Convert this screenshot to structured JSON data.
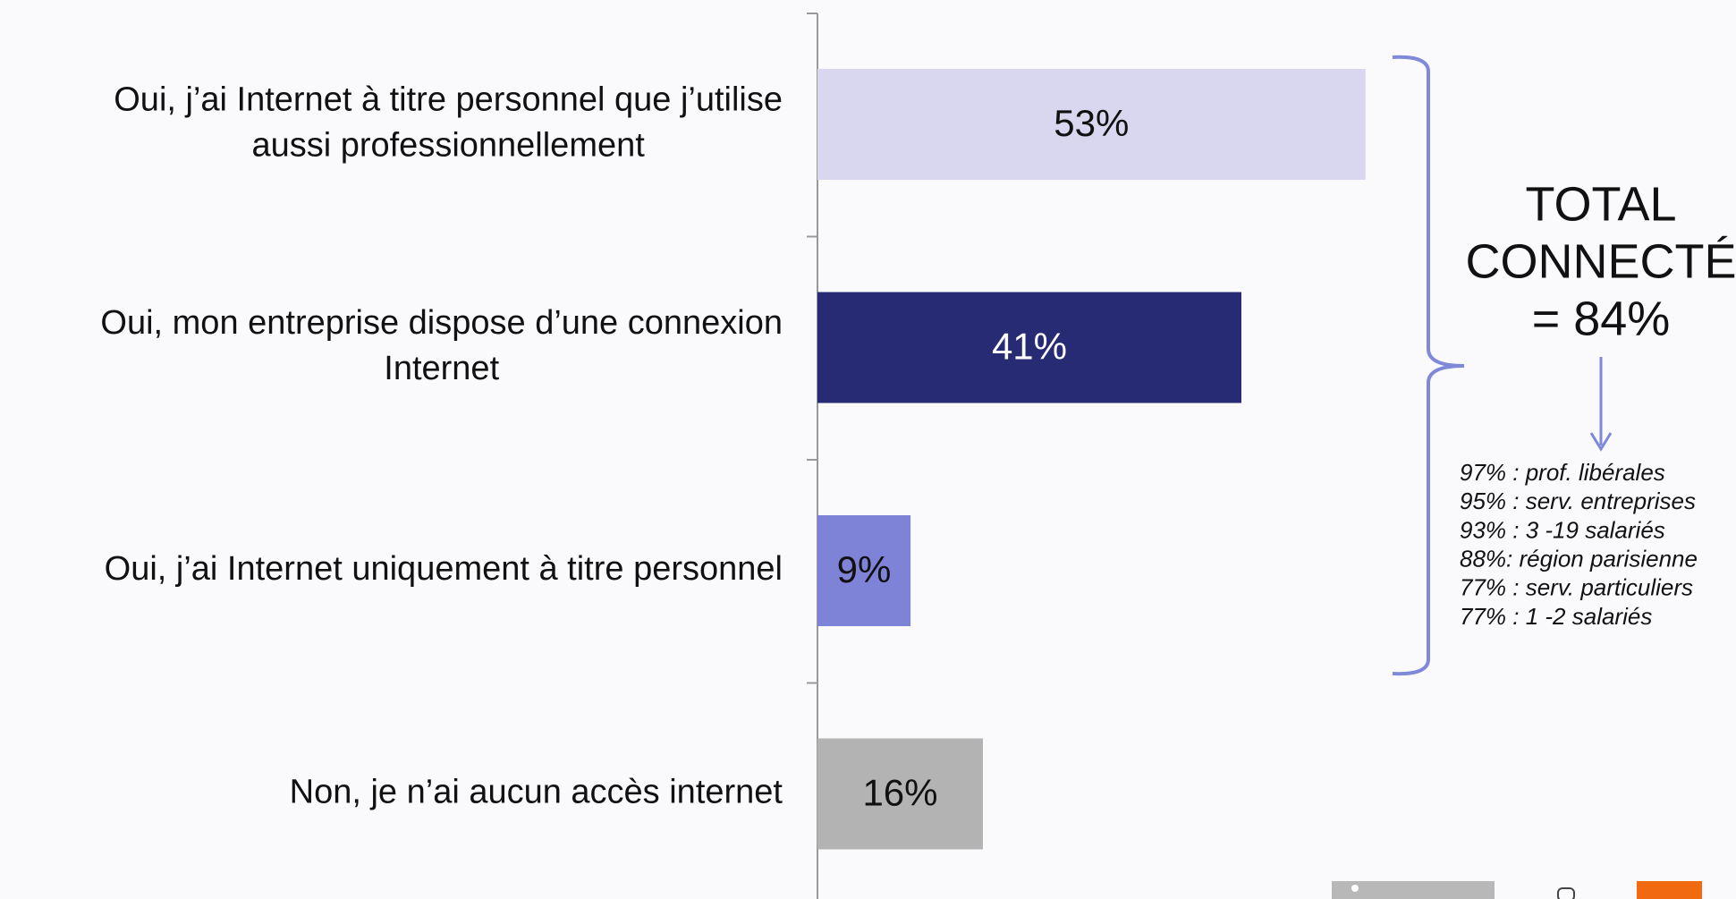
{
  "chart_data": {
    "type": "barh",
    "categories": [
      [
        "Oui, j’ai Internet à titre personnel que j’utilise",
        "aussi professionnellement"
      ],
      [
        "Oui, mon entreprise dispose d’une connexion",
        "Internet"
      ],
      [
        "Oui, j’ai Internet uniquement à titre personnel"
      ],
      [
        "Non, je n’ai aucun accès internet"
      ]
    ],
    "values": [
      53,
      41,
      9,
      16
    ],
    "value_labels": [
      "53%",
      "41%",
      "9%",
      "16%"
    ],
    "colors": [
      "#d8d7ef",
      "#272b74",
      "#7f83d8",
      "#b3b3b3"
    ],
    "annotation": {
      "total": [
        "TOTAL",
        "CONNECTÉ",
        "= 84%"
      ],
      "details": [
        "97% : prof. libérales",
        "95% : serv. entreprises",
        "93% : 3 -19 salariés",
        "88%: région parisienne",
        "77% : serv. particuliers",
        "77% : 1 -2 salariés"
      ],
      "color": "#8088d8"
    }
  }
}
